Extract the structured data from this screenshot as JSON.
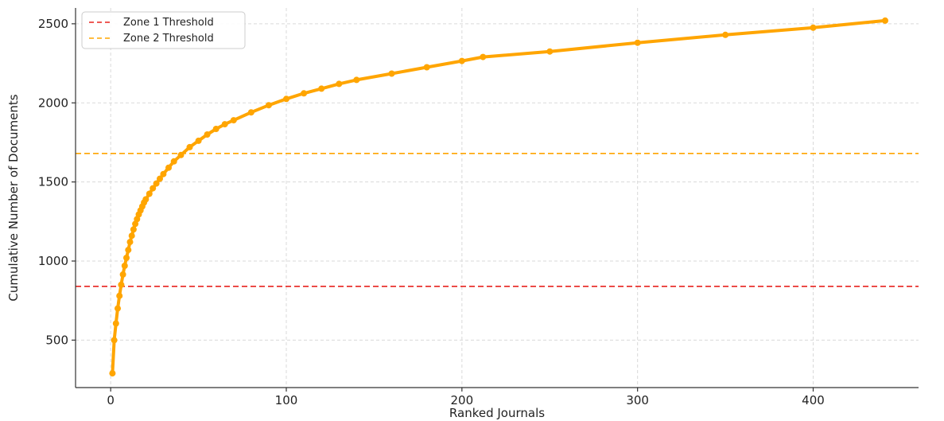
{
  "chart_data": {
    "type": "line",
    "xlabel": "Ranked Journals",
    "ylabel": "Cumulative Number of Documents",
    "xlim": [
      -20,
      460
    ],
    "ylim": [
      200,
      2600
    ],
    "xticks": [
      0,
      100,
      200,
      300,
      400
    ],
    "yticks": [
      500,
      1000,
      1500,
      2000,
      2500
    ],
    "grid": true,
    "legend_position": "top-left",
    "series": [
      {
        "type": "line",
        "color": "#FFA500",
        "marker": "circle",
        "points": [
          [
            1,
            290
          ],
          [
            2,
            500
          ],
          [
            3,
            605
          ],
          [
            4,
            700
          ],
          [
            5,
            780
          ],
          [
            6,
            850
          ],
          [
            7,
            915
          ],
          [
            8,
            970
          ],
          [
            9,
            1020
          ],
          [
            10,
            1070
          ],
          [
            11,
            1120
          ],
          [
            12,
            1160
          ],
          [
            13,
            1200
          ],
          [
            14,
            1235
          ],
          [
            15,
            1265
          ],
          [
            16,
            1295
          ],
          [
            17,
            1320
          ],
          [
            18,
            1345
          ],
          [
            19,
            1370
          ],
          [
            20,
            1390
          ],
          [
            22,
            1425
          ],
          [
            24,
            1460
          ],
          [
            26,
            1490
          ],
          [
            28,
            1520
          ],
          [
            30,
            1550
          ],
          [
            33,
            1590
          ],
          [
            36,
            1630
          ],
          [
            40,
            1670
          ],
          [
            45,
            1720
          ],
          [
            50,
            1760
          ],
          [
            55,
            1800
          ],
          [
            60,
            1835
          ],
          [
            65,
            1865
          ],
          [
            70,
            1890
          ],
          [
            80,
            1940
          ],
          [
            90,
            1985
          ],
          [
            100,
            2025
          ],
          [
            110,
            2060
          ],
          [
            120,
            2090
          ],
          [
            130,
            2120
          ],
          [
            140,
            2145
          ],
          [
            160,
            2185
          ],
          [
            180,
            2225
          ],
          [
            200,
            2265
          ],
          [
            212,
            2290
          ],
          [
            250,
            2325
          ],
          [
            300,
            2380
          ],
          [
            350,
            2430
          ],
          [
            400,
            2475
          ],
          [
            441,
            2520
          ]
        ]
      }
    ],
    "thresholds": [
      {
        "name": "Zone 1 Threshold",
        "y": 840,
        "color": "#E8231F",
        "style": "dashed"
      },
      {
        "name": "Zone 2 Threshold",
        "y": 1680,
        "color": "#FFA500",
        "style": "dashed"
      }
    ],
    "legend": [
      "Zone 1 Threshold",
      "Zone 2 Threshold"
    ]
  }
}
